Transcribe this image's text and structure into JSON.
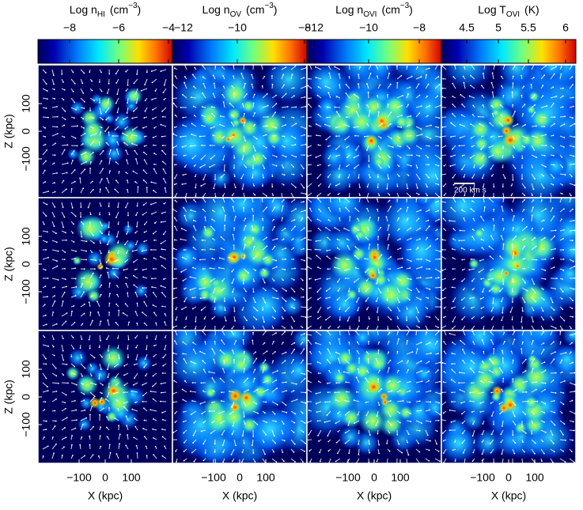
{
  "colorbars": [
    {
      "label": {
        "prefix": "Log n",
        "subscript": "HI",
        "unit": "(cm",
        "superscript": "−3",
        "suffix": ")"
      },
      "ticks": [
        "−8",
        "−6",
        "−4"
      ]
    },
    {
      "label": {
        "prefix": "Log n",
        "subscript": "OV",
        "unit": "(cm",
        "superscript": "−3",
        "suffix": ")"
      },
      "ticks": [
        "−12",
        "−10",
        "−8"
      ]
    },
    {
      "label": {
        "prefix": "Log n",
        "subscript": "OVI",
        "unit": "(cm",
        "superscript": "−3",
        "suffix": ")"
      },
      "ticks": [
        "−12",
        "−10",
        "−8"
      ]
    },
    {
      "label": {
        "prefix": "Log T",
        "subscript": "OVI",
        "unit": "(K)"
      },
      "ticks": [
        "4.5",
        "5",
        "5.5",
        "6"
      ]
    }
  ],
  "y_axis": {
    "label": "Z (kpc)",
    "ticks": [
      "100",
      "0",
      "−100"
    ]
  },
  "x_axis": {
    "label": "X (kpc)",
    "ticks": [
      "−100",
      "0",
      "100"
    ]
  },
  "annotation": "200 km s"
}
